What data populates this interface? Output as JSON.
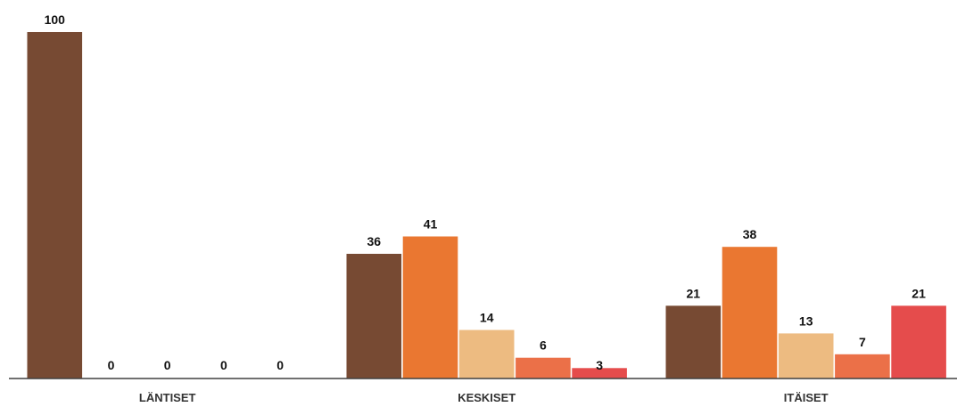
{
  "chart_data": {
    "type": "bar",
    "categories": [
      "LÄNTISET",
      "KESKISET",
      "ITÄISET"
    ],
    "series": [
      {
        "values": [
          100,
          36,
          21
        ],
        "color": "#774A33"
      },
      {
        "values": [
          0,
          41,
          38
        ],
        "color": "#EA7731"
      },
      {
        "values": [
          0,
          14,
          13
        ],
        "color": "#EDBB81"
      },
      {
        "values": [
          0,
          6,
          7
        ],
        "color": "#EB7048"
      },
      {
        "values": [
          0,
          3,
          21
        ],
        "color": "#E54C4C"
      }
    ],
    "ylim": [
      0,
      100
    ],
    "grid": false,
    "legend": false
  }
}
